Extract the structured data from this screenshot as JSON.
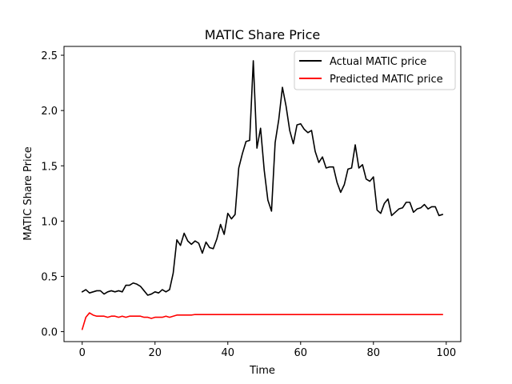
{
  "chart_data": {
    "type": "line",
    "title": "MATIC Share Price",
    "xlabel": "Time",
    "ylabel": "MATIC Share Price",
    "xlim": [
      -5,
      104
    ],
    "ylim": [
      -0.09,
      2.58
    ],
    "xticks": [
      0,
      20,
      40,
      60,
      80,
      100
    ],
    "xtick_labels": [
      "0",
      "20",
      "40",
      "60",
      "80",
      "100"
    ],
    "yticks": [
      0.0,
      0.5,
      1.0,
      1.5,
      2.0,
      2.5
    ],
    "ytick_labels": [
      "0.0",
      "0.5",
      "1.0",
      "1.5",
      "2.0",
      "2.5"
    ],
    "grid": false,
    "legend_position": "top-right",
    "series": [
      {
        "name": "Actual MATIC price",
        "color": "#000000",
        "x": [
          0,
          1,
          2,
          3,
          4,
          5,
          6,
          7,
          8,
          9,
          10,
          11,
          12,
          13,
          14,
          15,
          16,
          17,
          18,
          19,
          20,
          21,
          22,
          23,
          24,
          25,
          26,
          27,
          28,
          29,
          30,
          31,
          32,
          33,
          34,
          35,
          36,
          37,
          38,
          39,
          40,
          41,
          42,
          43,
          44,
          45,
          46,
          47,
          48,
          49,
          50,
          51,
          52,
          53,
          54,
          55,
          56,
          57,
          58,
          59,
          60,
          61,
          62,
          63,
          64,
          65,
          66,
          67,
          68,
          69,
          70,
          71,
          72,
          73,
          74,
          75,
          76,
          77,
          78,
          79,
          80,
          81,
          82,
          83,
          84,
          85,
          86,
          87,
          88,
          89,
          90,
          91,
          92,
          93,
          94,
          95,
          96,
          97,
          98,
          99
        ],
        "values": [
          0.36,
          0.38,
          0.35,
          0.36,
          0.37,
          0.37,
          0.34,
          0.36,
          0.37,
          0.36,
          0.37,
          0.36,
          0.42,
          0.42,
          0.44,
          0.43,
          0.41,
          0.37,
          0.33,
          0.34,
          0.36,
          0.35,
          0.38,
          0.36,
          0.38,
          0.53,
          0.83,
          0.78,
          0.89,
          0.82,
          0.79,
          0.82,
          0.8,
          0.71,
          0.81,
          0.76,
          0.75,
          0.84,
          0.97,
          0.88,
          1.07,
          1.02,
          1.06,
          1.48,
          1.61,
          1.72,
          1.73,
          2.45,
          1.66,
          1.84,
          1.46,
          1.19,
          1.09,
          1.71,
          1.92,
          2.21,
          2.04,
          1.82,
          1.7,
          1.87,
          1.88,
          1.83,
          1.8,
          1.82,
          1.63,
          1.53,
          1.58,
          1.48,
          1.49,
          1.49,
          1.35,
          1.26,
          1.33,
          1.47,
          1.48,
          1.69,
          1.48,
          1.51,
          1.38,
          1.36,
          1.4,
          1.1,
          1.07,
          1.16,
          1.2,
          1.05,
          1.08,
          1.11,
          1.12,
          1.17,
          1.17,
          1.08,
          1.11,
          1.12,
          1.15,
          1.11,
          1.13,
          1.13,
          1.05,
          1.06
        ]
      },
      {
        "name": "Predicted MATIC price",
        "color": "#ff0000",
        "x": [
          0,
          1,
          2,
          3,
          4,
          5,
          6,
          7,
          8,
          9,
          10,
          11,
          12,
          13,
          14,
          15,
          16,
          17,
          18,
          19,
          20,
          21,
          22,
          23,
          24,
          25,
          26,
          27,
          28,
          29,
          30,
          31,
          32,
          33,
          34,
          35,
          36,
          37,
          38,
          39,
          40,
          41,
          42,
          43,
          44,
          45,
          46,
          47,
          48,
          49,
          50,
          51,
          52,
          53,
          54,
          55,
          56,
          57,
          58,
          59,
          60,
          61,
          62,
          63,
          64,
          65,
          66,
          67,
          68,
          69,
          70,
          71,
          72,
          73,
          74,
          75,
          76,
          77,
          78,
          79,
          80,
          81,
          82,
          83,
          84,
          85,
          86,
          87,
          88,
          89,
          90,
          91,
          92,
          93,
          94,
          95,
          96,
          97,
          98,
          99
        ],
        "values": [
          0.02,
          0.13,
          0.17,
          0.15,
          0.14,
          0.14,
          0.14,
          0.13,
          0.14,
          0.14,
          0.13,
          0.14,
          0.13,
          0.14,
          0.14,
          0.14,
          0.14,
          0.13,
          0.13,
          0.12,
          0.13,
          0.13,
          0.13,
          0.14,
          0.13,
          0.14,
          0.15,
          0.15,
          0.15,
          0.15,
          0.15,
          0.155,
          0.155,
          0.155,
          0.155,
          0.155,
          0.155,
          0.155,
          0.155,
          0.155,
          0.155,
          0.155,
          0.155,
          0.155,
          0.155,
          0.155,
          0.155,
          0.155,
          0.155,
          0.155,
          0.155,
          0.155,
          0.155,
          0.155,
          0.155,
          0.155,
          0.155,
          0.155,
          0.155,
          0.155,
          0.155,
          0.155,
          0.155,
          0.155,
          0.155,
          0.155,
          0.155,
          0.155,
          0.155,
          0.155,
          0.155,
          0.155,
          0.155,
          0.155,
          0.155,
          0.155,
          0.155,
          0.155,
          0.155,
          0.155,
          0.155,
          0.155,
          0.155,
          0.155,
          0.155,
          0.155,
          0.155,
          0.155,
          0.155,
          0.155,
          0.155,
          0.155,
          0.155,
          0.155,
          0.155,
          0.155,
          0.155,
          0.155,
          0.155,
          0.155
        ]
      }
    ]
  }
}
